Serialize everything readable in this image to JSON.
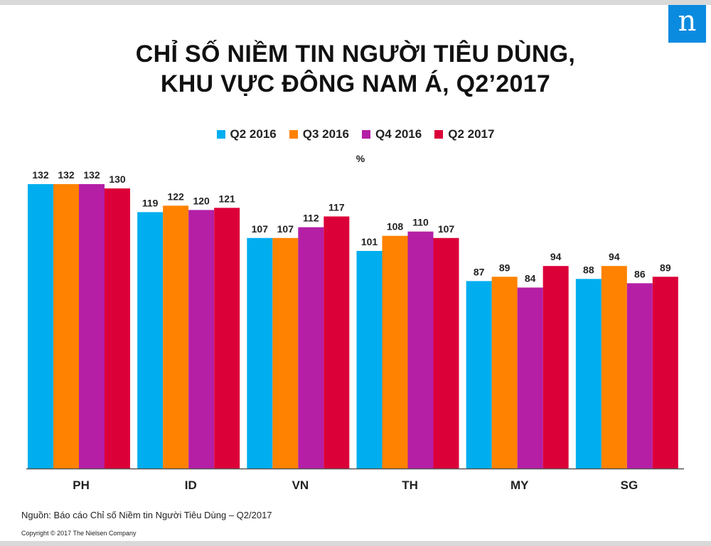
{
  "brand": {
    "logo_letter": "n",
    "logo_color": "#0a8be0"
  },
  "title": {
    "line1": "CHỈ SỐ NIỀM TIN NGƯỜI TIÊU DÙNG,",
    "line2": "KHU VỰC ĐÔNG NAM Á, Q2’2017"
  },
  "unit": "%",
  "source": "Nguồn: Báo cáo Chỉ số Niềm tin Người Tiêu Dùng – Q2/2017",
  "copyright": "Copyright © 2017 The Nielsen Company",
  "chart_data": {
    "type": "bar",
    "categories": [
      "PH",
      "ID",
      "VN",
      "TH",
      "MY",
      "SG"
    ],
    "series": [
      {
        "name": "Q2 2016",
        "color": "#00aeef",
        "values": [
          132,
          119,
          107,
          101,
          87,
          88
        ]
      },
      {
        "name": "Q3 2016",
        "color": "#ff8200",
        "values": [
          132,
          122,
          107,
          108,
          89,
          94
        ]
      },
      {
        "name": "Q4 2016",
        "color": "#b41fa6",
        "values": [
          132,
          120,
          112,
          110,
          84,
          86
        ]
      },
      {
        "name": "Q2 2017",
        "color": "#dc0039",
        "values": [
          130,
          121,
          117,
          107,
          94,
          89
        ]
      }
    ],
    "ylim": [
      0,
      132
    ],
    "legend_position": "top-center",
    "grid": false
  }
}
